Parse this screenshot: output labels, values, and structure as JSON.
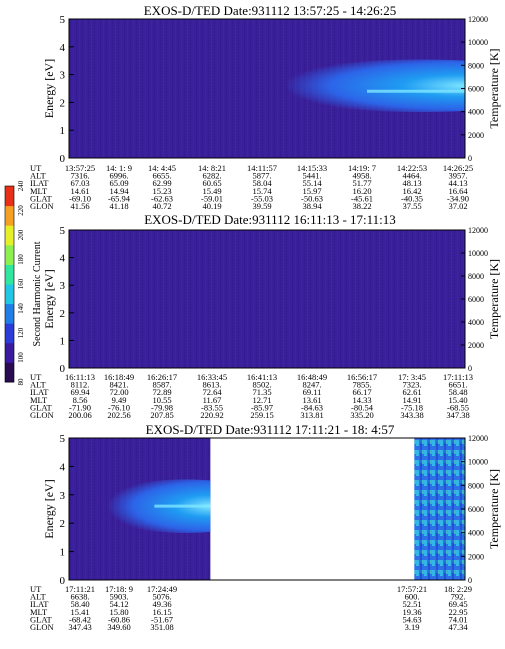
{
  "colors": {
    "background": "#3a1f9a",
    "enhancement_core": "#7fe6ff",
    "enhancement_mid": "#1f9cf2",
    "enhancement_outer": "#2c64e8",
    "colorbar": [
      "#2a0a50",
      "#3a1aa0",
      "#2c3cd8",
      "#1f7ee8",
      "#22c6e6",
      "#30e7a0",
      "#8ef050",
      "#e6f028",
      "#f5a020",
      "#e83018"
    ]
  },
  "colorbar": {
    "label": "Second Harmonic Current",
    "ticks": [
      "80",
      "100",
      "120",
      "140",
      "160",
      "180",
      "200",
      "220",
      "240"
    ]
  },
  "chart_data": [
    {
      "type": "heatmap",
      "title": "EXOS-D/TED   Date:931112   13:57:25 - 14:26:25",
      "ylabel": "Energy [eV]",
      "ylabel_right": "Temperature [K]",
      "ylim": [
        0,
        5
      ],
      "ylim_right": [
        0,
        12000
      ],
      "yticks": [
        "0",
        "1",
        "2",
        "3",
        "4",
        "5"
      ],
      "yticks_right": [
        "0",
        "2000",
        "4000",
        "6000",
        "8000",
        "10000",
        "12000"
      ],
      "data_spans": [
        [
          0,
          1
        ]
      ],
      "enhancement": {
        "start": 0.55,
        "energy_center": 2.6,
        "energy_halfwidth": 0.9,
        "peak_energy": 2.4
      },
      "rows": [
        {
          "label": "UT",
          "values": [
            "13:57:25",
            "14: 1: 9",
            "14: 4:45",
            "14: 8:21",
            "14:11:57",
            "14:15:33",
            "14:19: 7",
            "14:22:53",
            "14:26:25"
          ]
        },
        {
          "label": "ALT",
          "values": [
            "7316.",
            "6996.",
            "6655.",
            "6282.",
            "5877.",
            "5441.",
            "4958.",
            "4464.",
            "3957."
          ]
        },
        {
          "label": "ILAT",
          "values": [
            "67.03",
            "65.09",
            "62.99",
            "60.65",
            "58.04",
            "55.14",
            "51.77",
            "48.13",
            "44.13"
          ]
        },
        {
          "label": "MLT",
          "values": [
            "14.61",
            "14.94",
            "15.23",
            "15.49",
            "15.74",
            "15.97",
            "16.20",
            "16.42",
            "16.64"
          ]
        },
        {
          "label": "GLAT",
          "values": [
            "-69.10",
            "-65.94",
            "-62.63",
            "-59.01",
            "-55.03",
            "-50.63",
            "-45.61",
            "-40.35",
            "-34.90"
          ]
        },
        {
          "label": "GLON",
          "values": [
            "41.56",
            "41.18",
            "40.72",
            "40.19",
            "39.59",
            "38.94",
            "38.22",
            "37.55",
            "37.02"
          ]
        }
      ]
    },
    {
      "type": "heatmap",
      "title": "EXOS-D/TED   Date:931112   16:11:13 - 17:11:13",
      "ylabel": "Energy [eV]",
      "ylabel_right": "Temperature [K]",
      "ylim": [
        0,
        5
      ],
      "ylim_right": [
        0,
        12000
      ],
      "yticks": [
        "0",
        "1",
        "2",
        "3",
        "4",
        "5"
      ],
      "yticks_right": [
        "0",
        "2000",
        "4000",
        "6000",
        "8000",
        "10000",
        "12000"
      ],
      "data_spans": [
        [
          0,
          1
        ]
      ],
      "enhancement": null,
      "rows": [
        {
          "label": "UT",
          "values": [
            "16:11:13",
            "16:18:49",
            "16:26:17",
            "16:33:45",
            "16:41:13",
            "16:48:49",
            "16:56:17",
            "17: 3:45",
            "17:11:13"
          ]
        },
        {
          "label": "ALT",
          "values": [
            "8112.",
            "8421.",
            "8587.",
            "8613.",
            "8502.",
            "8247.",
            "7855.",
            "7323.",
            "6651."
          ]
        },
        {
          "label": "ILAT",
          "values": [
            "69.94",
            "72.00",
            "72.89",
            "72.64",
            "71.35",
            "69.11",
            "66.17",
            "62.61",
            "58.48"
          ]
        },
        {
          "label": "MLT",
          "values": [
            "8.56",
            "9.49",
            "10.55",
            "11.67",
            "12.71",
            "13.61",
            "14.33",
            "14.91",
            "15.40"
          ]
        },
        {
          "label": "GLAT",
          "values": [
            "-71.90",
            "-76.10",
            "-79.98",
            "-83.55",
            "-85.97",
            "-84.63",
            "-80.54",
            "-75.18",
            "-68.55"
          ]
        },
        {
          "label": "GLON",
          "values": [
            "200.06",
            "202.56",
            "207.85",
            "220.92",
            "259.15",
            "313.81",
            "335.20",
            "343.38",
            "347.38"
          ]
        }
      ]
    },
    {
      "type": "heatmap",
      "title": "EXOS-D/TED   Date:931112   17:11:21 - 18: 4:57",
      "ylabel": "Energy [eV]",
      "ylabel_right": "Temperature [K]",
      "ylim": [
        0,
        5
      ],
      "ylim_right": [
        0,
        12000
      ],
      "yticks": [
        "0",
        "1",
        "2",
        "3",
        "4",
        "5"
      ],
      "yticks_right": [
        "0",
        "2000",
        "4000",
        "6000",
        "8000",
        "10000",
        "12000"
      ],
      "data_spans": [
        [
          0,
          0.357
        ],
        [
          0.872,
          1
        ]
      ],
      "enhancement": {
        "start": 0.1,
        "end": 0.357,
        "energy_center": 2.6,
        "energy_halfwidth": 0.9,
        "peak_energy": 2.6
      },
      "rows": [
        {
          "label": "UT",
          "values": [
            "17:11:21",
            "17:18: 9",
            "17:24:49",
            "",
            "",
            "",
            "",
            "17:57:21",
            "18: 2:29"
          ]
        },
        {
          "label": "ALT",
          "values": [
            "6638.",
            "5903.",
            "5076.",
            "",
            "",
            "",
            "",
            "600.",
            "792."
          ]
        },
        {
          "label": "ILAT",
          "values": [
            "58.40",
            "54.12",
            "49.36",
            "",
            "",
            "",
            "",
            "52.51",
            "69.45"
          ]
        },
        {
          "label": "MLT",
          "values": [
            "15.41",
            "15.80",
            "16.15",
            "",
            "",
            "",
            "",
            "19.36",
            "22.95"
          ]
        },
        {
          "label": "GLAT",
          "values": [
            "-68.42",
            "-60.86",
            "-51.67",
            "",
            "",
            "",
            "",
            "54.63",
            "74.01"
          ]
        },
        {
          "label": "GLON",
          "values": [
            "347.43",
            "349.60",
            "351.08",
            "",
            "",
            "",
            "",
            "3.19",
            "47.34"
          ]
        }
      ]
    }
  ]
}
